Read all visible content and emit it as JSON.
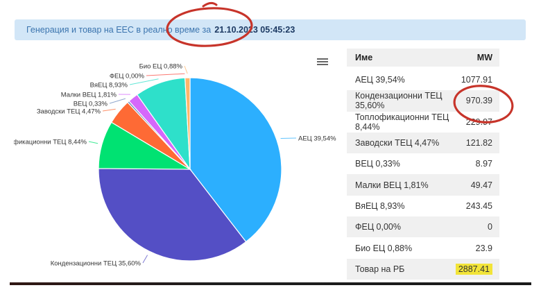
{
  "header": {
    "title_prefix": "Генерация и товар на ЕЕС в реално време за",
    "timestamp": "21.10.2023 05:45:23"
  },
  "chart_data": {
    "type": "pie",
    "title": "",
    "unit": "MW",
    "legend_position": "none",
    "labels": [
      "АЕЦ 39,54%",
      "Кондензационни ТЕЦ 35,60%",
      "Топлофикационни ТЕЦ 8,44%",
      "Заводски ТЕЦ 4,47%",
      "ВЕЦ 0,33%",
      "Малки ВЕЦ 1,81%",
      "ВяЕЦ 8,93%",
      "ФЕЦ 0,00%",
      "Био ЕЦ 0,88%"
    ],
    "values_pct": [
      39.54,
      35.6,
      8.44,
      4.47,
      0.33,
      1.81,
      8.93,
      0.0,
      0.88
    ],
    "values_mw": [
      1077.91,
      970.39,
      229.97,
      121.82,
      8.97,
      49.47,
      243.45,
      0,
      23.9
    ],
    "colors": [
      "#2caffe",
      "#544fc5",
      "#00e272",
      "#fe6a35",
      "#6b8abc",
      "#d568fb",
      "#2ee0ca",
      "#fa4b42",
      "#feb56a"
    ]
  },
  "table": {
    "columns": [
      "Име",
      "MW"
    ],
    "rows": [
      {
        "name": "АЕЦ 39,54%",
        "mw": "1077.91"
      },
      {
        "name": "Кондензационни ТЕЦ 35,60%",
        "mw": "970.39",
        "circled": true
      },
      {
        "name": "Топлофикационни ТЕЦ 8,44%",
        "mw": "229.97"
      },
      {
        "name": "Заводски ТЕЦ 4,47%",
        "mw": "121.82"
      },
      {
        "name": "ВЕЦ 0,33%",
        "mw": "8.97"
      },
      {
        "name": "Малки ВЕЦ 1,81%",
        "mw": "49.47"
      },
      {
        "name": "ВяЕЦ 8,93%",
        "mw": "243.45"
      },
      {
        "name": "ФЕЦ 0,00%",
        "mw": "0"
      },
      {
        "name": "Био ЕЦ 0,88%",
        "mw": "23.9"
      },
      {
        "name": "Товар на РБ",
        "mw": "2887.41",
        "highlighted": true
      }
    ]
  },
  "annotations": {
    "pen_color": "#c7342a",
    "highlight_color": "#f2e438"
  }
}
